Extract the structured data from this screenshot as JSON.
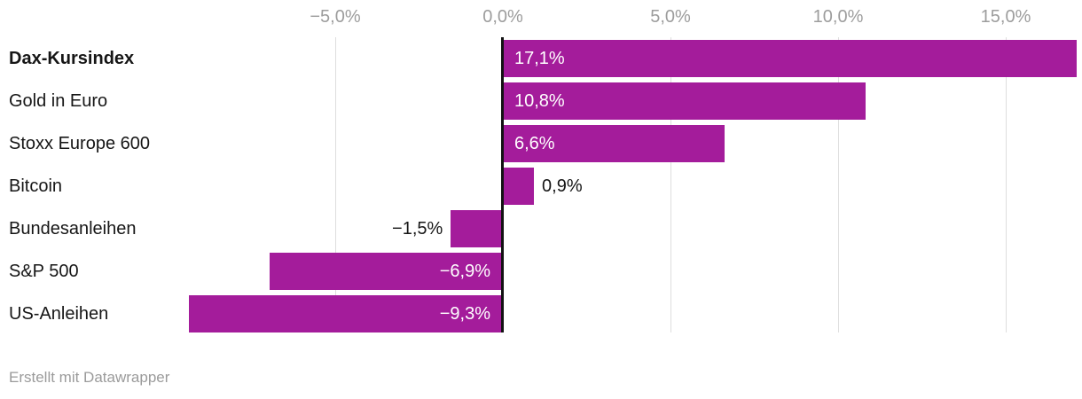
{
  "footer": {
    "attribution": "Erstellt mit Datawrapper"
  },
  "colors": {
    "bar": "#a41c9b",
    "axis_label": "#9d9d9d",
    "gridline": "#dedede",
    "zero_line": "#121212",
    "label_dark": "#161616",
    "label_light": "#ffffff",
    "background": "#ffffff"
  },
  "chart_data": {
    "type": "bar",
    "orientation": "horizontal",
    "title": "",
    "xlabel": "",
    "ylabel": "",
    "grid": true,
    "legend": false,
    "categories": [
      "Dax-Kursindex",
      "Gold in Euro",
      "Stoxx Europe 600",
      "Bitcoin",
      "Bundesanleihen",
      "S&P 500",
      "US-Anleihen"
    ],
    "values": [
      17.1,
      10.8,
      6.6,
      0.9,
      -1.5,
      -6.9,
      -9.3
    ],
    "value_labels": [
      "17,1%",
      "10,8%",
      "6,6%",
      "0,9%",
      "−1,5%",
      "−6,9%",
      "−9,3%"
    ],
    "label_placement": [
      "inside-start",
      "inside-start",
      "inside-start",
      "outside-end",
      "outside-start",
      "inside-end",
      "inside-end"
    ],
    "emphasized_category_index": 0,
    "x_axis": {
      "ticks": [
        -5,
        0,
        5,
        10,
        15
      ],
      "tick_labels": [
        "−5,0%",
        "0,0%",
        "5,0%",
        "10,0%",
        "15,0%"
      ]
    }
  }
}
